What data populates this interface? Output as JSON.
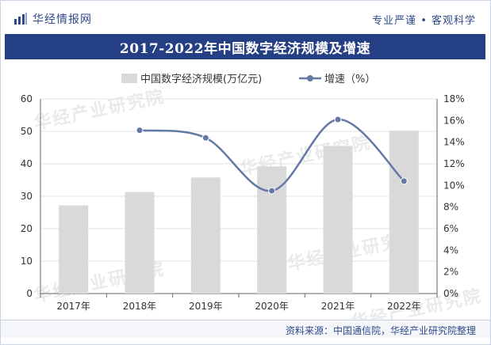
{
  "header": {
    "brand": "华经情报网",
    "slogan": "专业严谨 • 客观科学"
  },
  "watermark": "华经产业研究院",
  "footer": {
    "source": "资料来源：中国通信院，华经产业研究院整理"
  },
  "colors": {
    "title_bg": "#253f85",
    "brand_text": "#2f4a8a",
    "bar": "#d9d9d9",
    "line": "#6478a6"
  },
  "chart_data": {
    "type": "bar",
    "title": "2017-2022年中国数字经济规模及增速",
    "categories": [
      "2017年",
      "2018年",
      "2019年",
      "2020年",
      "2021年",
      "2022年"
    ],
    "series": [
      {
        "name": "中国数字经济规模(万亿元)",
        "type": "bar",
        "axis": "left",
        "values": [
          27.2,
          31.3,
          35.8,
          39.2,
          45.5,
          50.2
        ]
      },
      {
        "name": "增速（%）",
        "type": "line",
        "axis": "right",
        "values": [
          null,
          15.1,
          14.4,
          9.5,
          16.1,
          10.4
        ]
      }
    ],
    "y_left": {
      "min": 0,
      "max": 60,
      "ticks": [
        "0",
        "10",
        "20",
        "30",
        "40",
        "50",
        "60"
      ]
    },
    "y_right": {
      "min": 0,
      "max": 18,
      "ticks": [
        "0%",
        "2%",
        "4%",
        "6%",
        "8%",
        "10%",
        "12%",
        "14%",
        "16%",
        "18%"
      ]
    },
    "grid": true,
    "legend_position": "top-center"
  }
}
